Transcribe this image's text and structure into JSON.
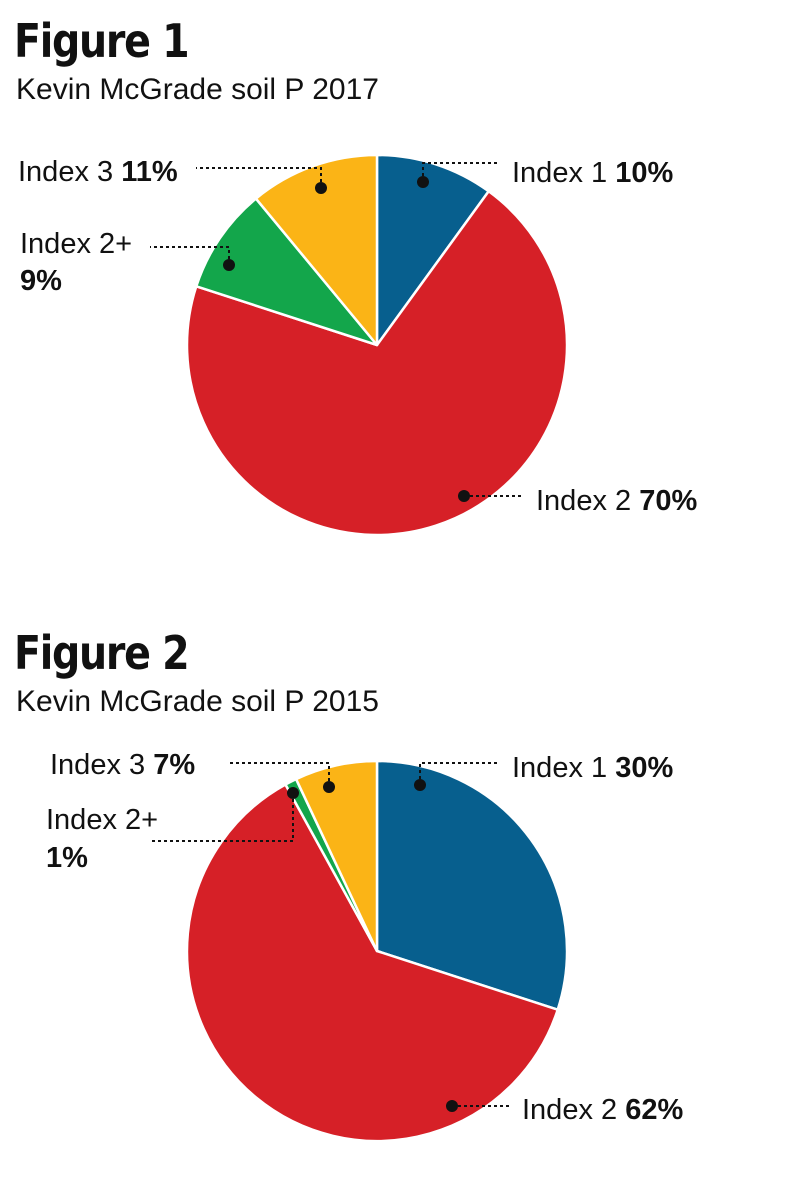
{
  "figures": [
    {
      "title": "Figure 1",
      "subtitle": "Kevin McGrade soil P 2017",
      "chart_data": {
        "type": "pie",
        "slices": [
          {
            "name": "Index 1",
            "value": 10,
            "label": "10%",
            "color": "#075f8e"
          },
          {
            "name": "Index 2",
            "value": 70,
            "label": "70%",
            "color": "#d62027"
          },
          {
            "name": "Index 2+",
            "value": 9,
            "label": "9%",
            "color": "#13a64b"
          },
          {
            "name": "Index 3",
            "value": 11,
            "label": "11%",
            "color": "#fbb416"
          }
        ]
      }
    },
    {
      "title": "Figure 2",
      "subtitle": "Kevin McGrade soil P 2015",
      "chart_data": {
        "type": "pie",
        "slices": [
          {
            "name": "Index 1",
            "value": 30,
            "label": "30%",
            "color": "#075f8e"
          },
          {
            "name": "Index 2",
            "value": 62,
            "label": "62%",
            "color": "#d62027"
          },
          {
            "name": "Index 2+",
            "value": 1,
            "label": "1%",
            "color": "#13a64b"
          },
          {
            "name": "Index 3",
            "value": 7,
            "label": "7%",
            "color": "#fbb416"
          }
        ]
      }
    }
  ]
}
